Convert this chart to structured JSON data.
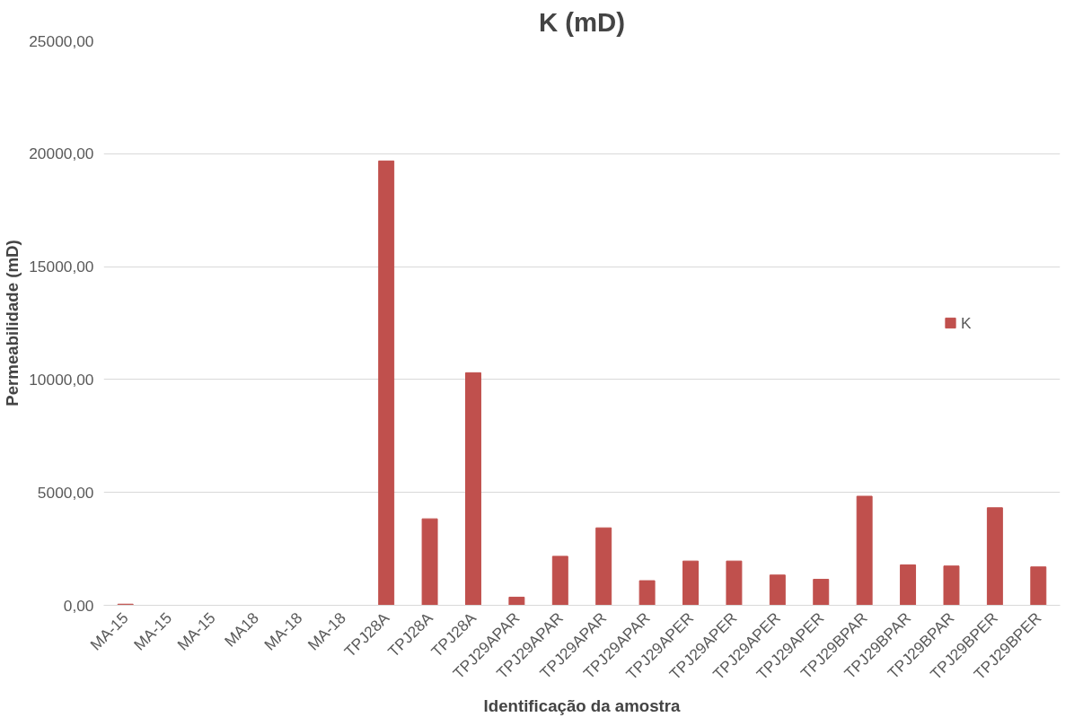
{
  "chart_data": {
    "type": "bar",
    "title": "K (mD)",
    "xlabel": "Identificação da amostra",
    "ylabel": "Permeabilidade (mD)",
    "categories": [
      "MA-15",
      "MA-15",
      "MA-15",
      "MA18",
      "MA-18",
      "MA-18",
      "TPJ28A",
      "TPJ28A",
      "TPJ28A",
      "TPJ29APAR",
      "TPJ29APAR",
      "TPJ29APAR",
      "TPJ29APAR",
      "TPJ29APER",
      "TPJ29APER",
      "TPJ29APER",
      "TPJ29APER",
      "TPJ29BPAR",
      "TPJ29BPAR",
      "TPJ29BPAR",
      "TPJ29BPER",
      "TPJ29BPER"
    ],
    "series": [
      {
        "name": "K",
        "color": "#c0504d",
        "values": [
          50,
          0,
          0,
          0,
          0,
          0,
          19680,
          3830,
          10300,
          360,
          2170,
          3430,
          1090,
          1960,
          1960,
          1340,
          1150,
          4830,
          1790,
          1740,
          4320,
          1700
        ]
      }
    ],
    "ylim": [
      0,
      25000
    ],
    "yticks": [
      {
        "value": 0,
        "label": "0,00"
      },
      {
        "value": 5000,
        "label": "5000,00"
      },
      {
        "value": 10000,
        "label": "10000,00"
      },
      {
        "value": 15000,
        "label": "15000,00"
      },
      {
        "value": 20000,
        "label": "20000,00"
      },
      {
        "value": 25000,
        "label": "25000,00"
      }
    ],
    "grid": "y",
    "legend": "right"
  }
}
